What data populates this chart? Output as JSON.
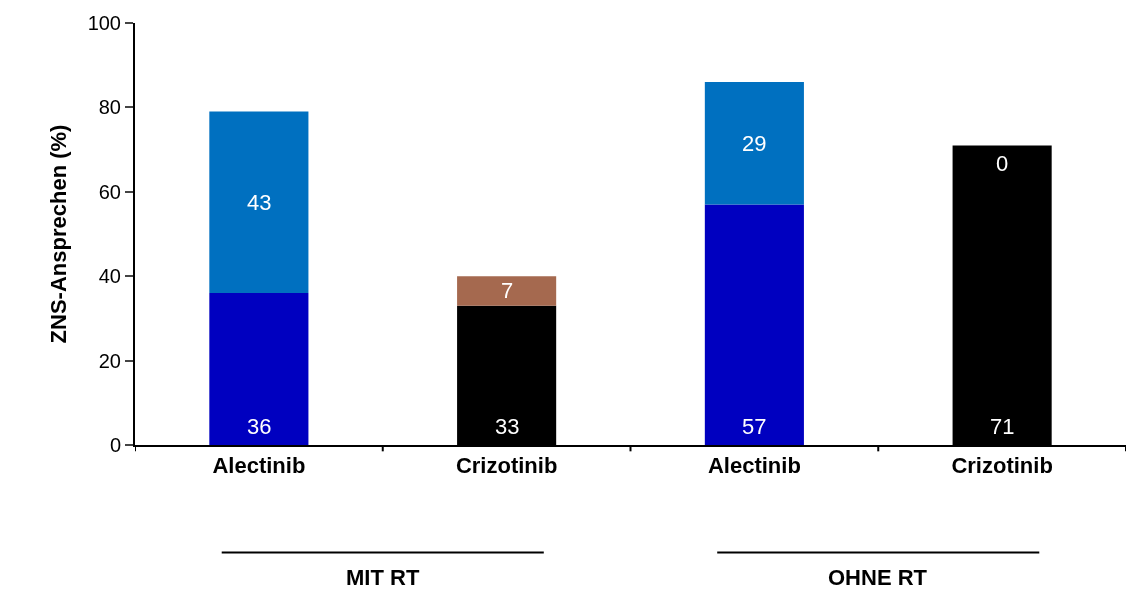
{
  "chart_data": {
    "type": "bar",
    "stacked": true,
    "ylabel": "ZNS-Ansprechen (%)",
    "categories": [
      "Alectinib",
      "Crizotinib",
      "Alectinib",
      "Crizotinib"
    ],
    "series": [
      {
        "colors": [
          "#0000c0",
          "#000000",
          "#0000c0",
          "#000000"
        ],
        "values": [
          36,
          33,
          57,
          71
        ]
      },
      {
        "colors": [
          "#0070c0",
          "#a5694f",
          "#0070c0",
          "#000000"
        ],
        "values": [
          43,
          7,
          29,
          0
        ]
      }
    ],
    "ylim": [
      0,
      100
    ],
    "yticks": [
      0,
      20,
      40,
      60,
      80,
      100
    ],
    "data_labels": true,
    "annotations": [
      "MIT RT",
      "OHNE RT"
    ]
  }
}
